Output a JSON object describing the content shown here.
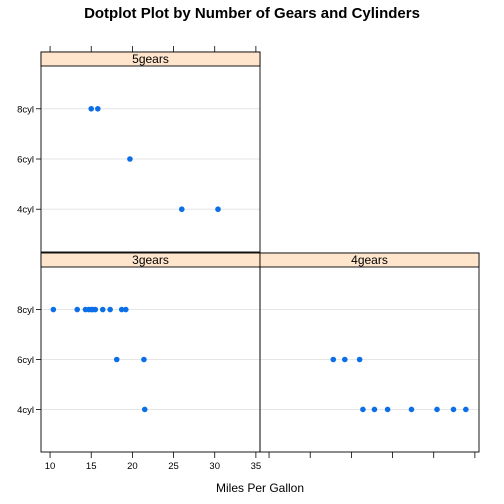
{
  "chart_data": {
    "type": "dotplot",
    "title": "Dotplot Plot by Number of Gears and Cylinders",
    "xlabel": "Miles Per Gallon",
    "ylabel": "",
    "xlim": [
      8.9,
      35.5
    ],
    "x_ticks": [
      10,
      15,
      20,
      25,
      30,
      35
    ],
    "x_tick_labels": [
      "10",
      "15",
      "20",
      "25",
      "30",
      "35"
    ],
    "categories": [
      "4cyl",
      "6cyl",
      "8cyl"
    ],
    "panels": [
      {
        "name": "5gears",
        "points": [
          {
            "category": "8cyl",
            "values": [
              15.0,
              15.8
            ]
          },
          {
            "category": "6cyl",
            "values": [
              19.7
            ]
          },
          {
            "category": "4cyl",
            "values": [
              26.0,
              30.4
            ]
          }
        ]
      },
      {
        "name": "3gears",
        "points": [
          {
            "category": "8cyl",
            "values": [
              10.4,
              13.3,
              14.3,
              14.7,
              15.0,
              15.2,
              15.5,
              16.4,
              17.3,
              18.7,
              19.2
            ]
          },
          {
            "category": "6cyl",
            "values": [
              18.1,
              21.4
            ]
          },
          {
            "category": "4cyl",
            "values": [
              21.5
            ]
          }
        ]
      },
      {
        "name": "4gears",
        "points": [
          {
            "category": "6cyl",
            "values": [
              17.8,
              19.2,
              21.0
            ]
          },
          {
            "category": "4cyl",
            "values": [
              21.4,
              22.8,
              24.4,
              27.3,
              30.4,
              32.4,
              33.9
            ]
          }
        ]
      }
    ]
  }
}
